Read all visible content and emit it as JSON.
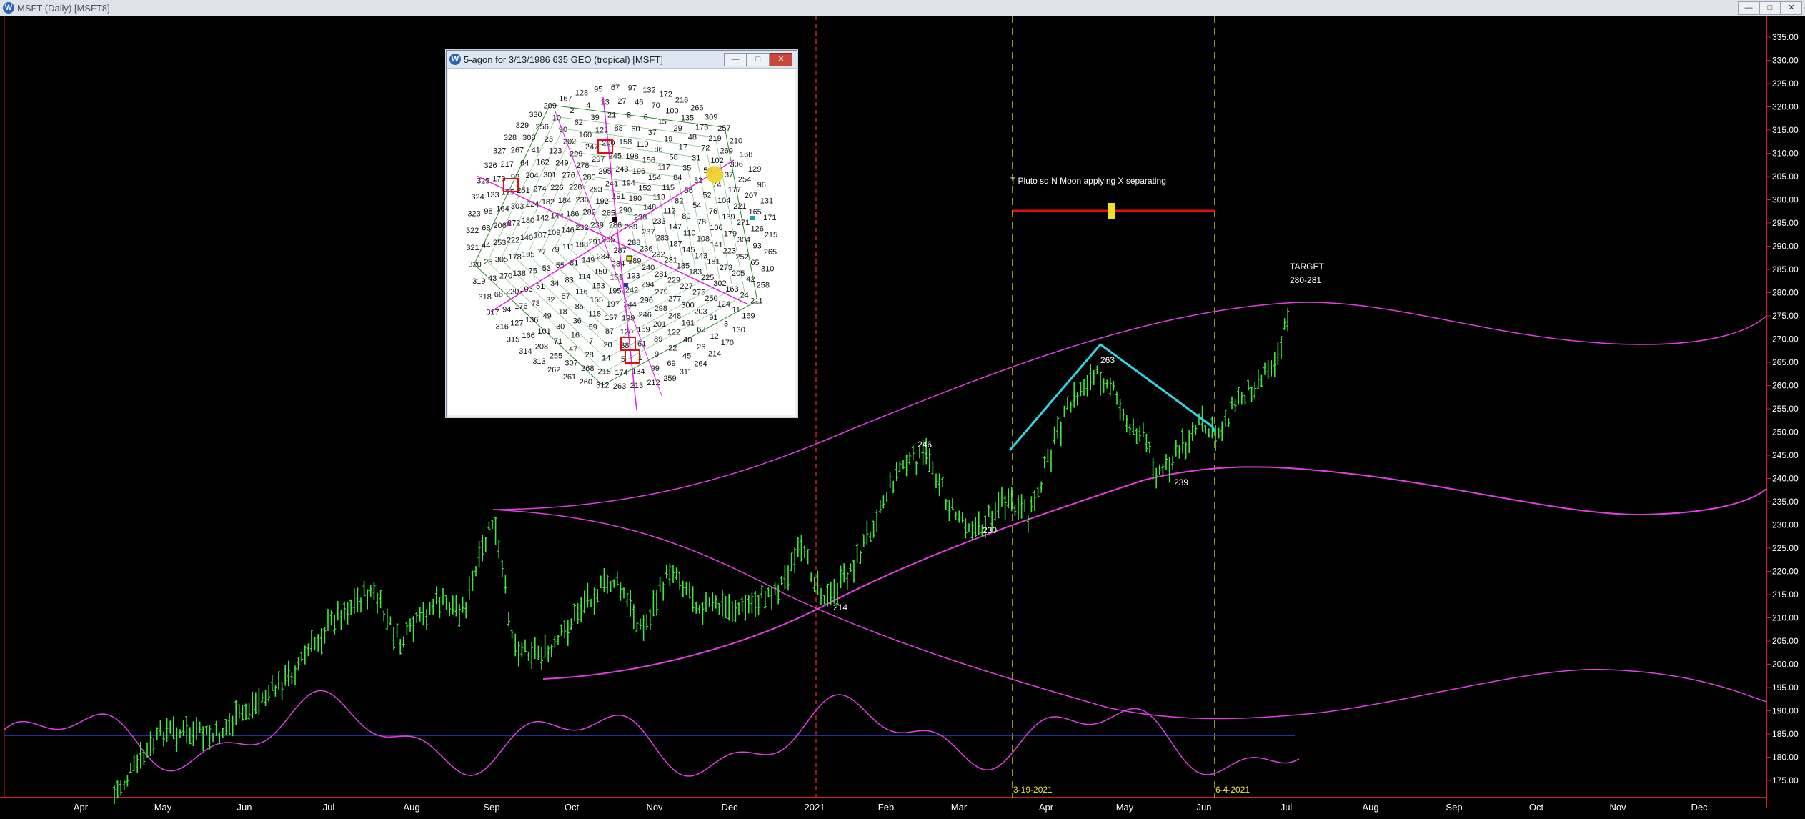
{
  "window": {
    "title": "MSFT (Daily) [MSFT8]",
    "app_icon": "W",
    "controls": [
      "minimize-icon",
      "maximize-icon",
      "close-icon"
    ]
  },
  "chart": {
    "y_axis": {
      "labels": [
        "335.00",
        "330.00",
        "325.00",
        "320.00",
        "315.00",
        "310.00",
        "305.00",
        "300.00",
        "295.00",
        "290.00",
        "285.00",
        "280.00",
        "275.00",
        "270.00",
        "265.00",
        "260.00",
        "255.00",
        "250.00",
        "245.00",
        "240.00",
        "235.00",
        "230.00",
        "225.00",
        "220.00",
        "215.00",
        "210.00",
        "205.00",
        "200.00",
        "195.00",
        "190.00",
        "185.00",
        "180.00",
        "175.00"
      ]
    },
    "x_axis": {
      "months": [
        "Apr",
        "May",
        "Jun",
        "Jul",
        "Aug",
        "Sep",
        "Oct",
        "Nov",
        "Dec",
        "2021",
        "Feb",
        "Mar",
        "Apr",
        "May",
        "Jun",
        "Jul",
        "Aug",
        "Sep",
        "Oct",
        "Nov",
        "Dec"
      ]
    },
    "annotations": {
      "transit": "T Pluto sq N Moon applying  X  separating",
      "target_title": "TARGET",
      "target_range": "280-281",
      "price_labels": [
        "246",
        "263",
        "230",
        "239",
        "214"
      ],
      "date_left": "3-19-2021",
      "date_right": "6-4-2021"
    },
    "colors": {
      "bars": "#3ee63e",
      "envelope": "#e040e0",
      "pattern": "#30d6e6",
      "transit_line": "#e01010",
      "marker": "#f0e020",
      "date_lines": "#c8c030",
      "red_dash": "#d02020",
      "baseline": "#3040d0"
    }
  },
  "dialog": {
    "title": "5-agon for  3/13/1986 635 GEO (tropical) [MSFT]",
    "icon": "W",
    "controls": [
      "minimize-icon",
      "maximize-icon",
      "close-icon"
    ],
    "numbers": [
      "286",
      "289",
      "288",
      "287",
      "235",
      "285",
      "290",
      "238",
      "237",
      "236",
      "189",
      "234",
      "284",
      "291",
      "239",
      "192",
      "191",
      "190",
      "148",
      "233",
      "283",
      "292",
      "240",
      "193",
      "151",
      "150",
      "149",
      "188",
      "232",
      "282",
      "293",
      "241",
      "194",
      "152",
      "113",
      "112",
      "147",
      "187",
      "231",
      "281",
      "294",
      "242",
      "195",
      "153",
      "114",
      "81",
      "111",
      "146",
      "186",
      "230",
      "280",
      "295",
      "243",
      "196",
      "154",
      "115",
      "82",
      "80",
      "110",
      "145",
      "185",
      "229",
      "279",
      "296",
      "244",
      "197",
      "155",
      "116",
      "83",
      "55",
      "79",
      "109",
      "144",
      "184",
      "228",
      "278",
      "297",
      "245",
      "198",
      "156",
      "117",
      "84",
      "56",
      "54",
      "78",
      "108",
      "143",
      "183",
      "227",
      "277",
      "298",
      "246",
      "199",
      "157",
      "118",
      "85",
      "57",
      "34",
      "53",
      "77",
      "107",
      "142",
      "182",
      "226",
      "276",
      "299",
      "247",
      "200",
      "158",
      "119",
      "86",
      "58",
      "35",
      "33",
      "52",
      "76",
      "106",
      "141",
      "181",
      "225",
      "275",
      "300",
      "248",
      "201",
      "159",
      "120",
      "87",
      "59",
      "36",
      "18",
      "32",
      "51",
      "75",
      "105",
      "140",
      "180",
      "224",
      "274",
      "301",
      "249",
      "202",
      "160",
      "121",
      "88",
      "60",
      "37",
      "19",
      "17",
      "31",
      "50",
      "74",
      "104",
      "139",
      "179",
      "223",
      "273",
      "302",
      "250",
      "203",
      "161",
      "122",
      "89",
      "61",
      "38",
      "20",
      "7",
      "16",
      "30",
      "49",
      "73",
      "103",
      "138",
      "178",
      "222",
      "272",
      "303",
      "251",
      "204",
      "162",
      "123",
      "90",
      "62",
      "39",
      "21",
      "8",
      "6",
      "15",
      "29",
      "48",
      "72",
      "102",
      "137",
      "177",
      "221",
      "271",
      "304",
      "252",
      "205",
      "163",
      "124",
      "91",
      "63",
      "40",
      "22",
      "9",
      "1",
      "5",
      "14",
      "28",
      "47",
      "71",
      "101",
      "136",
      "176",
      "220",
      "270",
      "305",
      "253",
      "206",
      "164",
      "125",
      "92",
      "64",
      "41",
      "23",
      "10",
      "2",
      "4",
      "13",
      "27",
      "46",
      "70",
      "100",
      "135",
      "175",
      "219",
      "269",
      "306",
      "254",
      "207",
      "165",
      "126",
      "93",
      "65",
      "42",
      "24",
      "11",
      "3",
      "12",
      "26",
      "45",
      "69",
      "99",
      "134",
      "174",
      "218",
      "268",
      "307",
      "255",
      "208",
      "166",
      "127",
      "94",
      "66",
      "43",
      "25",
      "44",
      "68",
      "98",
      "133",
      "173",
      "217",
      "267",
      "308",
      "256",
      "209",
      "167",
      "128",
      "95",
      "67",
      "97",
      "132",
      "172",
      "216",
      "266",
      "309",
      "257",
      "210",
      "168",
      "129",
      "96",
      "131",
      "171",
      "215",
      "265",
      "310",
      "258",
      "211",
      "169",
      "130",
      "170",
      "214",
      "264",
      "311",
      "259",
      "212",
      "213",
      "263",
      "312",
      "260",
      "261",
      "262",
      "313",
      "314",
      "315",
      "316",
      "317",
      "318",
      "319",
      "320",
      "321",
      "322",
      "323",
      "324",
      "325",
      "326",
      "327",
      "328",
      "329",
      "330"
    ]
  }
}
